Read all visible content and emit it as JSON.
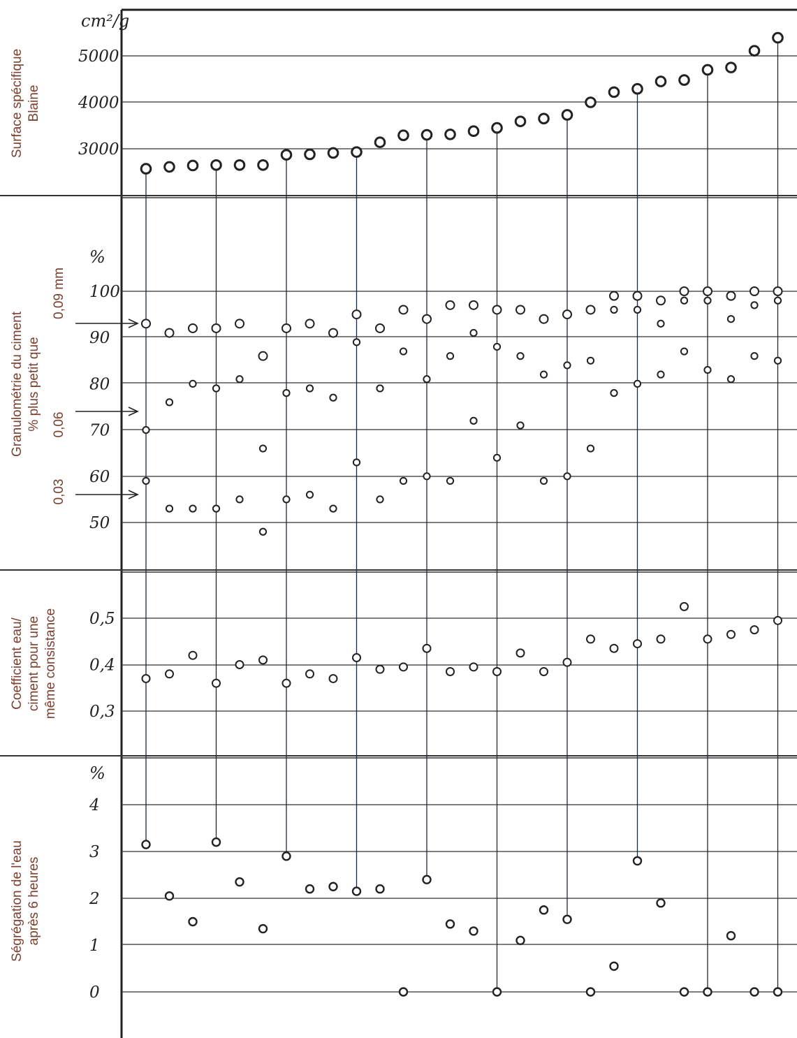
{
  "chart_data": [
    {
      "type": "scatter",
      "panel": "blaine",
      "ylabel": [
        "Surface spécifique",
        "Blaine"
      ],
      "unit": "cm²/g",
      "yticks": [
        "5000",
        "4000",
        "3000"
      ],
      "ytick_values": [
        5000,
        4000,
        3000
      ],
      "ylim": [
        2450,
        5500
      ],
      "x": [
        1,
        2,
        3,
        4,
        5,
        6,
        7,
        8,
        9,
        10,
        11,
        12,
        13,
        14,
        15,
        16,
        17,
        18,
        19,
        20,
        21,
        22,
        23,
        24,
        25,
        26,
        27,
        28
      ],
      "values": [
        2570,
        2610,
        2640,
        2650,
        2650,
        2650,
        2870,
        2880,
        2910,
        2930,
        3140,
        3290,
        3300,
        3310,
        3380,
        3450,
        3590,
        3650,
        3730,
        4000,
        4220,
        4290,
        4450,
        4480,
        4700,
        4750,
        5110,
        5390
      ]
    },
    {
      "type": "scatter",
      "panel": "granulometrie",
      "ylabel": [
        "Granulométrie du ciment",
        "% plus petit que"
      ],
      "size_labels": [
        "0,09 mm",
        "0,06",
        "0,03"
      ],
      "unit": "%",
      "yticks": [
        "100",
        "90",
        "80",
        "70",
        "60",
        "50"
      ],
      "ytick_values": [
        100,
        90,
        80,
        70,
        60,
        50
      ],
      "ylim": [
        40,
        115
      ],
      "x": [
        1,
        2,
        3,
        4,
        5,
        6,
        7,
        8,
        9,
        10,
        11,
        12,
        13,
        14,
        15,
        16,
        17,
        18,
        19,
        20,
        21,
        22,
        23,
        24,
        25,
        26,
        27,
        28
      ],
      "series": [
        {
          "name": "0,09 mm",
          "values": [
            93,
            91,
            92,
            92,
            93,
            86,
            92,
            93,
            91,
            95,
            92,
            96,
            94,
            97,
            97,
            96,
            96,
            94,
            95,
            96,
            99,
            99,
            98,
            100,
            100,
            99,
            100,
            100
          ]
        },
        {
          "name": "0,06",
          "values": [
            70,
            76,
            80,
            79,
            81,
            66,
            78,
            79,
            77,
            89,
            79,
            87,
            81,
            86,
            91,
            88,
            86,
            82,
            84,
            85,
            78,
            80,
            82,
            87,
            83,
            81,
            86,
            85
          ]
        },
        {
          "name": "0,03",
          "values": [
            59,
            53,
            53,
            53,
            55,
            48,
            55,
            56,
            53,
            63,
            55,
            59,
            60,
            59,
            72,
            64,
            71,
            59,
            60,
            66,
            96,
            96,
            93,
            98,
            98,
            94,
            97,
            98
          ]
        }
      ]
    },
    {
      "type": "scatter",
      "panel": "coefficient",
      "ylabel": [
        "Coefficient eau/",
        "ciment pour une",
        "même consistance"
      ],
      "yticks": [
        "0,5",
        "0,4",
        "0,3"
      ],
      "ytick_values": [
        0.5,
        0.4,
        0.3
      ],
      "ylim": [
        0.21,
        0.6
      ],
      "x": [
        1,
        2,
        3,
        4,
        5,
        6,
        7,
        8,
        9,
        10,
        11,
        12,
        13,
        14,
        15,
        16,
        17,
        18,
        19,
        20,
        21,
        22,
        23,
        24,
        25,
        26,
        27,
        28
      ],
      "values": [
        0.37,
        0.38,
        0.42,
        0.36,
        0.4,
        0.41,
        0.36,
        0.38,
        0.37,
        0.415,
        0.39,
        0.395,
        0.435,
        0.385,
        0.395,
        0.385,
        0.425,
        0.385,
        0.405,
        0.455,
        0.435,
        0.445,
        0.455,
        0.525,
        0.455,
        0.465,
        0.475,
        0.495
      ]
    },
    {
      "type": "scatter",
      "panel": "segregation",
      "ylabel": [
        "Ségrégation de l'eau",
        "après 6 heures"
      ],
      "unit": "%",
      "yticks": [
        "4",
        "3",
        "2",
        "1",
        "0"
      ],
      "ytick_values": [
        4,
        3,
        2,
        1,
        0
      ],
      "ylim": [
        -0.95,
        5
      ],
      "x": [
        1,
        2,
        3,
        4,
        5,
        6,
        7,
        8,
        9,
        10,
        11,
        12,
        13,
        14,
        15,
        16,
        17,
        18,
        19,
        20,
        21,
        22,
        23,
        24,
        25,
        26,
        27,
        28
      ],
      "values": [
        3.15,
        2.05,
        1.5,
        3.2,
        2.35,
        1.35,
        2.9,
        2.2,
        2.25,
        2.15,
        2.2,
        0.0,
        2.4,
        1.45,
        1.3,
        0.0,
        1.1,
        1.75,
        1.55,
        0.0,
        0.55,
        2.8,
        1.9,
        0.0,
        0.0,
        1.2,
        0.0,
        0.0
      ]
    }
  ],
  "highlighted_x": [
    1,
    4,
    7,
    10,
    13,
    16,
    19,
    22,
    25,
    28
  ]
}
